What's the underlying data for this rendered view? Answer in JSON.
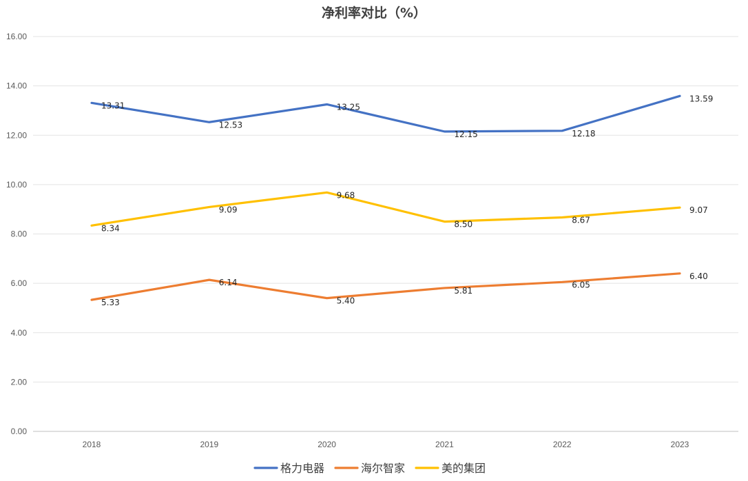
{
  "chart_data": {
    "type": "line",
    "title": "净利率对比（%）",
    "categories": [
      "2018",
      "2019",
      "2020",
      "2021",
      "2022",
      "2023"
    ],
    "ylim": [
      0,
      16
    ],
    "ytick_labels": [
      "0.00",
      "2.00",
      "4.00",
      "6.00",
      "8.00",
      "10.00",
      "12.00",
      "14.00",
      "16.00"
    ],
    "grid": "horizontal",
    "legend_position": "bottom",
    "series": [
      {
        "name": "格力电器",
        "color": "#4472C4",
        "values": [
          13.31,
          12.53,
          13.25,
          12.15,
          12.18,
          13.59
        ],
        "labels": [
          "13.31",
          "12.53",
          "13.25",
          "12.15",
          "12.18",
          "13.59"
        ]
      },
      {
        "name": "海尔智家",
        "color": "#ED7D31",
        "values": [
          5.33,
          6.14,
          5.4,
          5.81,
          6.05,
          6.4
        ],
        "labels": [
          "5.33",
          "6.14",
          "5.40",
          "5.81",
          "6.05",
          "6.40"
        ]
      },
      {
        "name": "美的集团",
        "color": "#FFC000",
        "values": [
          8.34,
          9.09,
          9.68,
          8.5,
          8.67,
          9.07
        ],
        "labels": [
          "8.34",
          "9.09",
          "9.68",
          "8.50",
          "8.67",
          "9.07"
        ]
      }
    ]
  }
}
